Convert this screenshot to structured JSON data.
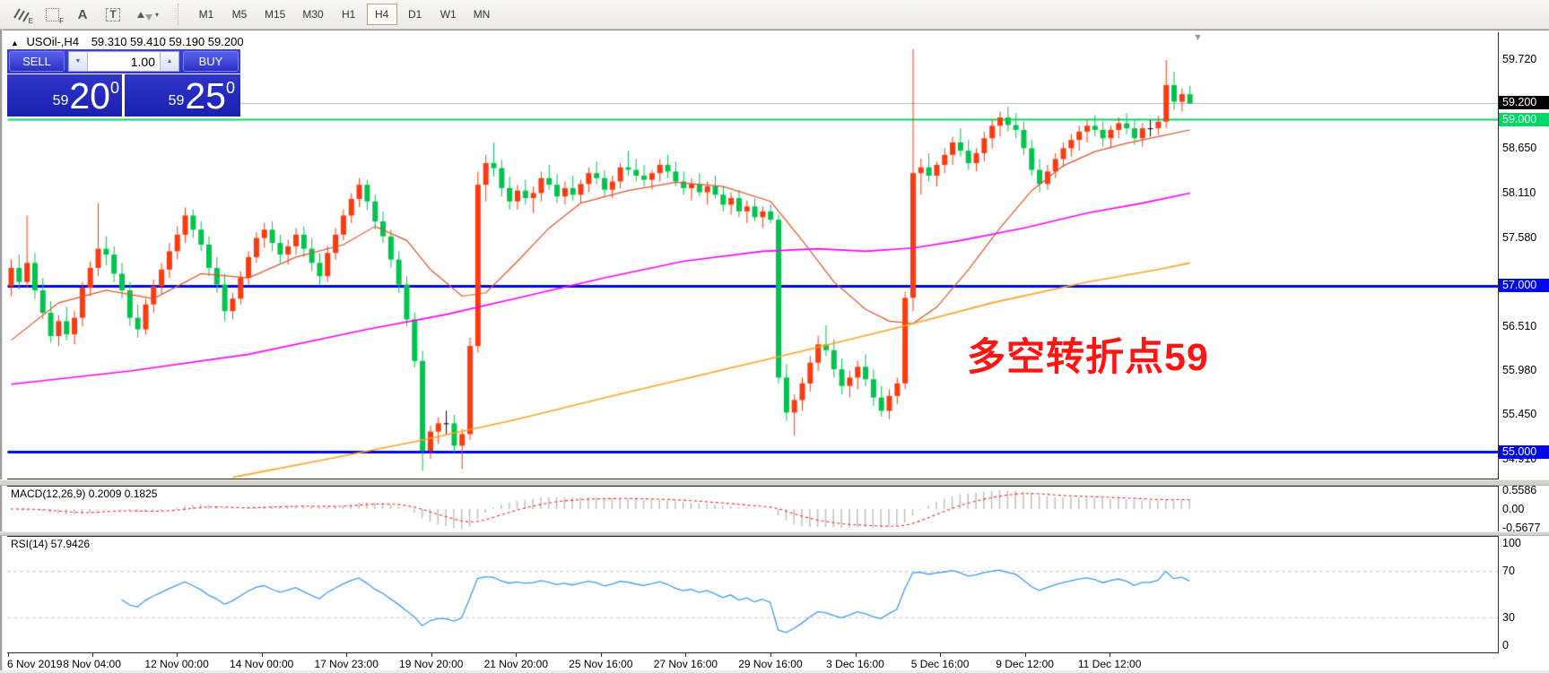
{
  "toolbar": {
    "icons": [
      {
        "name": "chart-expert-icon",
        "sub": "E"
      },
      {
        "name": "grid-template-icon",
        "sub": "F"
      },
      {
        "name": "text-label-icon",
        "glyph": "A"
      },
      {
        "name": "text-box-icon",
        "glyph": "T"
      },
      {
        "name": "arrange-arrows-icon",
        "caret": "▾"
      }
    ],
    "timeframes": [
      "M1",
      "M5",
      "M15",
      "M30",
      "H1",
      "H4",
      "D1",
      "W1",
      "MN"
    ],
    "active_timeframe": "H4"
  },
  "chart": {
    "collapse_arrow": "▲",
    "title_symbol": "USOil-,H4",
    "title_ohlc": "59.310 59.410 59.190 59.200",
    "shift_marker": "▼",
    "annotation": "多空转折点59"
  },
  "trade_panel": {
    "sell_label": "SELL",
    "buy_label": "BUY",
    "volume": "1.00",
    "spin_up": "▲",
    "spin_down": "▼",
    "bid": {
      "prefix": "59",
      "big": "20",
      "sup": "0"
    },
    "ask": {
      "prefix": "59",
      "big": "25",
      "sup": "0"
    }
  },
  "price_axis": {
    "ticks": [
      {
        "price": 59.72,
        "label": "59.720"
      },
      {
        "price": 58.65,
        "label": "58.650"
      },
      {
        "price": 58.11,
        "label": "58.110"
      },
      {
        "price": 57.58,
        "label": "57.580"
      },
      {
        "price": 56.51,
        "label": "56.510"
      },
      {
        "price": 55.98,
        "label": "55.980"
      },
      {
        "price": 55.45,
        "label": "55.450"
      },
      {
        "price": 54.91,
        "label": "54.910"
      }
    ],
    "markers": [
      {
        "price": 59.2,
        "label": "59.200",
        "bg": "#000000",
        "fg": "#ffffff"
      },
      {
        "price": 59.0,
        "label": "59.000",
        "bg": "#00d966",
        "fg": "#ffffff"
      },
      {
        "price": 57.0,
        "label": "57.000",
        "bg": "#0008e8",
        "fg": "#ffffff"
      },
      {
        "price": 55.0,
        "label": "55.000",
        "bg": "#0008e8",
        "fg": "#ffffff"
      }
    ]
  },
  "time_axis": {
    "labels": [
      "6 Nov 2019",
      "8 Nov 04:00",
      "12 Nov 00:00",
      "14 Nov 00:00",
      "17 Nov 23:00",
      "19 Nov 20:00",
      "21 Nov 20:00",
      "25 Nov 16:00",
      "27 Nov 16:00",
      "29 Nov 16:00",
      "3 Dec 16:00",
      "5 Dec 16:00",
      "9 Dec 12:00",
      "11 Dec 12:00"
    ]
  },
  "macd_panel": {
    "label": "MACD(12,26,9) 0.2009 0.1825",
    "fast": 12,
    "slow": 26,
    "signal": 9,
    "axis_labels": [
      {
        "value": 0.5586,
        "label": "0.5586"
      },
      {
        "value": 0.0,
        "label": "0.00"
      },
      {
        "value": -0.5677,
        "label": "-0.5677"
      }
    ],
    "scale_max": 0.62,
    "hist_color": "#c2c2c2",
    "signal_color": "#ff2020"
  },
  "rsi_panel": {
    "label": "RSI(14) 57.9426",
    "period": 14,
    "levels": [
      70,
      30
    ],
    "line_color": "#3d9bf5",
    "axis_labels": [
      {
        "value": 100,
        "label": "100"
      },
      {
        "value": 70,
        "label": "70"
      },
      {
        "value": 30,
        "label": "30"
      },
      {
        "value": 0,
        "label": "0"
      }
    ]
  },
  "chart_data": {
    "type": "candlestick",
    "symbol": "USOil",
    "timeframe": "H4",
    "title": "USOil-,H4 59.310 59.410 59.190 59.200",
    "price_range": [
      54.68,
      60.05
    ],
    "up_color": "#fb3a10",
    "down_color": "#00c44e",
    "doji_color": "#000000",
    "current_price": {
      "price": 59.2,
      "line_color": "#b8b8b8"
    },
    "hlines": [
      {
        "price": 59.0,
        "color": "#00d966",
        "width": 2
      },
      {
        "price": 57.0,
        "color": "#0008e8",
        "width": 3
      },
      {
        "price": 55.0,
        "color": "#0008e8",
        "width": 3
      }
    ],
    "candles": [
      [
        57.0,
        57.32,
        56.88,
        57.22
      ],
      [
        57.22,
        57.38,
        56.96,
        57.05
      ],
      [
        57.05,
        57.85,
        56.98,
        57.28
      ],
      [
        57.28,
        57.4,
        56.85,
        56.95
      ],
      [
        56.95,
        57.1,
        56.6,
        56.68
      ],
      [
        56.68,
        56.82,
        56.32,
        56.4
      ],
      [
        56.4,
        56.65,
        56.28,
        56.58
      ],
      [
        56.58,
        56.75,
        56.35,
        56.42
      ],
      [
        56.42,
        56.7,
        56.3,
        56.62
      ],
      [
        56.62,
        57.05,
        56.52,
        56.98
      ],
      [
        56.98,
        57.3,
        56.88,
        57.22
      ],
      [
        57.22,
        58.0,
        57.12,
        57.45
      ],
      [
        57.45,
        57.6,
        57.25,
        57.38
      ],
      [
        57.38,
        57.48,
        57.05,
        57.15
      ],
      [
        57.15,
        57.28,
        56.85,
        56.95
      ],
      [
        56.95,
        57.05,
        56.52,
        56.62
      ],
      [
        56.62,
        56.78,
        56.38,
        56.48
      ],
      [
        56.48,
        56.85,
        56.42,
        56.78
      ],
      [
        56.78,
        57.08,
        56.68,
        57.0
      ],
      [
        57.0,
        57.28,
        56.9,
        57.2
      ],
      [
        57.2,
        57.52,
        57.1,
        57.42
      ],
      [
        57.42,
        57.72,
        57.32,
        57.62
      ],
      [
        57.62,
        57.95,
        57.52,
        57.85
      ],
      [
        57.85,
        57.92,
        57.58,
        57.68
      ],
      [
        57.68,
        57.78,
        57.42,
        57.5
      ],
      [
        57.5,
        57.6,
        57.12,
        57.22
      ],
      [
        57.22,
        57.35,
        56.92,
        57.02
      ],
      [
        57.02,
        57.15,
        56.58,
        56.7
      ],
      [
        56.7,
        56.92,
        56.6,
        56.85
      ],
      [
        56.85,
        57.18,
        56.78,
        57.1
      ],
      [
        57.1,
        57.42,
        57.02,
        57.35
      ],
      [
        57.35,
        57.65,
        57.28,
        57.58
      ],
      [
        57.58,
        57.76,
        57.46,
        57.68
      ],
      [
        57.68,
        57.78,
        57.42,
        57.52
      ],
      [
        57.52,
        57.62,
        57.28,
        57.38
      ],
      [
        57.38,
        57.56,
        57.26,
        57.48
      ],
      [
        57.48,
        57.7,
        57.38,
        57.62
      ],
      [
        57.62,
        57.72,
        57.35,
        57.45
      ],
      [
        57.45,
        57.58,
        57.18,
        57.28
      ],
      [
        57.28,
        57.4,
        57.02,
        57.12
      ],
      [
        57.12,
        57.48,
        57.05,
        57.4
      ],
      [
        57.4,
        57.7,
        57.32,
        57.62
      ],
      [
        57.62,
        57.92,
        57.55,
        57.85
      ],
      [
        57.85,
        58.12,
        57.76,
        58.05
      ],
      [
        58.05,
        58.3,
        57.95,
        58.22
      ],
      [
        58.22,
        58.28,
        57.92,
        58.02
      ],
      [
        58.02,
        58.1,
        57.68,
        57.78
      ],
      [
        57.78,
        57.9,
        57.52,
        57.6
      ],
      [
        57.6,
        57.68,
        57.22,
        57.32
      ],
      [
        57.32,
        57.42,
        56.92,
        57.02
      ],
      [
        57.02,
        57.12,
        56.52,
        56.6
      ],
      [
        56.6,
        56.68,
        56.02,
        56.1
      ],
      [
        56.1,
        56.22,
        54.78,
        55.02
      ],
      [
        55.02,
        55.32,
        54.92,
        55.25
      ],
      [
        55.25,
        55.42,
        55.1,
        55.35
      ],
      [
        55.35,
        55.5,
        55.22,
        55.35
      ],
      [
        55.35,
        55.45,
        55.0,
        55.08
      ],
      [
        55.08,
        55.28,
        54.8,
        55.22
      ],
      [
        55.22,
        56.38,
        55.15,
        56.28
      ],
      [
        56.28,
        58.38,
        56.2,
        58.22
      ],
      [
        58.22,
        58.58,
        58.02,
        58.48
      ],
      [
        58.48,
        58.73,
        58.32,
        58.42
      ],
      [
        58.42,
        58.52,
        58.08,
        58.18
      ],
      [
        58.18,
        58.32,
        57.92,
        58.02
      ],
      [
        58.02,
        58.22,
        57.92,
        58.15
      ],
      [
        58.15,
        58.28,
        57.98,
        58.06
      ],
      [
        58.06,
        58.2,
        57.88,
        58.12
      ],
      [
        58.12,
        58.38,
        58.02,
        58.3
      ],
      [
        58.3,
        58.46,
        58.16,
        58.22
      ],
      [
        58.22,
        58.35,
        58.0,
        58.08
      ],
      [
        58.08,
        58.26,
        57.98,
        58.18
      ],
      [
        58.18,
        58.33,
        58.03,
        58.1
      ],
      [
        58.1,
        58.28,
        58.0,
        58.23
      ],
      [
        58.23,
        58.43,
        58.13,
        58.36
      ],
      [
        58.36,
        58.5,
        58.23,
        58.3
      ],
      [
        58.3,
        58.4,
        58.08,
        58.16
      ],
      [
        58.16,
        58.33,
        58.06,
        58.26
      ],
      [
        58.26,
        58.48,
        58.18,
        58.43
      ],
      [
        58.43,
        58.63,
        58.33,
        58.4
      ],
      [
        58.4,
        58.53,
        58.26,
        58.33
      ],
      [
        58.33,
        58.46,
        58.2,
        58.28
      ],
      [
        58.28,
        58.4,
        58.16,
        58.36
      ],
      [
        58.36,
        58.53,
        58.26,
        58.46
      ],
      [
        58.46,
        58.58,
        58.3,
        58.38
      ],
      [
        58.38,
        58.5,
        58.2,
        58.26
      ],
      [
        58.26,
        58.38,
        58.1,
        58.18
      ],
      [
        58.18,
        58.3,
        58.03,
        58.23
      ],
      [
        58.23,
        58.36,
        58.08,
        58.13
      ],
      [
        58.13,
        58.26,
        57.98,
        58.2
      ],
      [
        58.2,
        58.33,
        58.06,
        58.1
      ],
      [
        58.1,
        58.2,
        57.9,
        57.98
      ],
      [
        57.98,
        58.13,
        57.86,
        58.06
      ],
      [
        58.06,
        58.16,
        57.83,
        57.9
      ],
      [
        57.9,
        58.03,
        57.76,
        57.96
      ],
      [
        57.96,
        58.06,
        57.78,
        57.83
      ],
      [
        57.83,
        57.96,
        57.7,
        57.9
      ],
      [
        57.9,
        57.98,
        57.76,
        57.8
      ],
      [
        57.8,
        57.86,
        55.83,
        55.9
      ],
      [
        55.9,
        56.06,
        55.38,
        55.48
      ],
      [
        55.48,
        55.7,
        55.2,
        55.63
      ],
      [
        55.63,
        55.9,
        55.5,
        55.83
      ],
      [
        55.83,
        56.16,
        55.73,
        56.08
      ],
      [
        56.08,
        56.4,
        55.98,
        56.3
      ],
      [
        56.3,
        56.53,
        56.16,
        56.23
      ],
      [
        56.23,
        56.36,
        55.9,
        56.0
      ],
      [
        56.0,
        56.13,
        55.7,
        55.8
      ],
      [
        55.8,
        55.98,
        55.66,
        55.9
      ],
      [
        55.9,
        56.1,
        55.76,
        56.03
      ],
      [
        56.03,
        56.18,
        55.8,
        55.88
      ],
      [
        55.88,
        56.0,
        55.56,
        55.66
      ],
      [
        55.66,
        55.8,
        55.43,
        55.5
      ],
      [
        55.5,
        55.76,
        55.4,
        55.68
      ],
      [
        55.68,
        55.9,
        55.58,
        55.83
      ],
      [
        55.83,
        56.93,
        55.76,
        56.86
      ],
      [
        56.86,
        59.85,
        56.7,
        58.36
      ],
      [
        58.36,
        58.53,
        58.1,
        58.43
      ],
      [
        58.43,
        58.6,
        58.26,
        58.33
      ],
      [
        58.33,
        58.5,
        58.2,
        58.46
      ],
      [
        58.46,
        58.66,
        58.36,
        58.58
      ],
      [
        58.58,
        58.8,
        58.46,
        58.73
      ],
      [
        58.73,
        58.9,
        58.56,
        58.63
      ],
      [
        58.63,
        58.76,
        58.4,
        58.48
      ],
      [
        58.48,
        58.66,
        58.38,
        58.6
      ],
      [
        58.6,
        58.86,
        58.5,
        58.78
      ],
      [
        58.78,
        59.0,
        58.66,
        58.93
      ],
      [
        58.93,
        59.1,
        58.8,
        59.03
      ],
      [
        59.03,
        59.16,
        58.86,
        58.94
      ],
      [
        58.94,
        59.08,
        58.78,
        58.88
      ],
      [
        58.88,
        58.98,
        58.58,
        58.66
      ],
      [
        58.66,
        58.76,
        58.33,
        58.4
      ],
      [
        58.4,
        58.53,
        58.13,
        58.23
      ],
      [
        58.23,
        58.46,
        58.16,
        58.38
      ],
      [
        58.38,
        58.6,
        58.3,
        58.53
      ],
      [
        58.53,
        58.73,
        58.43,
        58.66
      ],
      [
        58.66,
        58.83,
        58.56,
        58.76
      ],
      [
        58.76,
        58.93,
        58.63,
        58.86
      ],
      [
        58.86,
        59.0,
        58.73,
        58.93
      ],
      [
        58.93,
        59.06,
        58.8,
        58.88
      ],
      [
        58.88,
        58.98,
        58.68,
        58.78
      ],
      [
        58.78,
        58.93,
        58.66,
        58.88
      ],
      [
        58.88,
        59.03,
        58.78,
        58.96
      ],
      [
        58.96,
        59.08,
        58.83,
        58.9
      ],
      [
        58.9,
        59.0,
        58.7,
        58.78
      ],
      [
        58.78,
        58.96,
        58.68,
        58.9
      ],
      [
        58.9,
        59.0,
        58.8,
        58.9
      ],
      [
        58.9,
        59.05,
        58.82,
        58.98
      ],
      [
        58.98,
        59.72,
        58.9,
        59.42
      ],
      [
        59.42,
        59.58,
        59.12,
        59.22
      ],
      [
        59.22,
        59.38,
        59.1,
        59.31
      ],
      [
        59.31,
        59.41,
        59.19,
        59.2
      ]
    ],
    "overlays": {
      "ma_fast": {
        "color": "#e2522d",
        "width": 1.2,
        "points": [
          [
            0,
            56.35
          ],
          [
            6,
            56.8
          ],
          [
            12,
            56.95
          ],
          [
            18,
            56.85
          ],
          [
            24,
            57.15
          ],
          [
            30,
            57.1
          ],
          [
            36,
            57.35
          ],
          [
            42,
            57.5
          ],
          [
            46,
            57.72
          ],
          [
            50,
            57.55
          ],
          [
            53,
            57.2
          ],
          [
            57,
            56.88
          ],
          [
            60,
            56.92
          ],
          [
            64,
            57.3
          ],
          [
            68,
            57.7
          ],
          [
            72,
            58.0
          ],
          [
            78,
            58.15
          ],
          [
            84,
            58.25
          ],
          [
            90,
            58.2
          ],
          [
            96,
            58.02
          ],
          [
            100,
            57.55
          ],
          [
            104,
            57.05
          ],
          [
            108,
            56.72
          ],
          [
            111,
            56.58
          ],
          [
            114,
            56.55
          ],
          [
            117,
            56.75
          ],
          [
            121,
            57.2
          ],
          [
            125,
            57.7
          ],
          [
            129,
            58.15
          ],
          [
            133,
            58.45
          ],
          [
            137,
            58.62
          ],
          [
            141,
            58.72
          ],
          [
            145,
            58.8
          ],
          [
            149,
            58.88
          ]
        ]
      },
      "ma_mid": {
        "color": "#ff00ff",
        "width": 1.6,
        "points": [
          [
            0,
            55.82
          ],
          [
            15,
            55.98
          ],
          [
            30,
            56.18
          ],
          [
            45,
            56.48
          ],
          [
            55,
            56.66
          ],
          [
            65,
            56.88
          ],
          [
            75,
            57.1
          ],
          [
            85,
            57.3
          ],
          [
            95,
            57.42
          ],
          [
            102,
            57.45
          ],
          [
            108,
            57.42
          ],
          [
            114,
            57.46
          ],
          [
            120,
            57.55
          ],
          [
            128,
            57.7
          ],
          [
            136,
            57.88
          ],
          [
            143,
            58.0
          ],
          [
            149,
            58.12
          ]
        ]
      },
      "ma_slow": {
        "color": "#ffa21f",
        "width": 1.6,
        "points": [
          [
            28,
            54.7
          ],
          [
            40,
            54.92
          ],
          [
            52,
            55.15
          ],
          [
            64,
            55.4
          ],
          [
            76,
            55.68
          ],
          [
            88,
            55.95
          ],
          [
            100,
            56.22
          ],
          [
            112,
            56.5
          ],
          [
            124,
            56.8
          ],
          [
            136,
            57.05
          ],
          [
            145,
            57.2
          ],
          [
            149,
            57.28
          ]
        ]
      }
    }
  }
}
